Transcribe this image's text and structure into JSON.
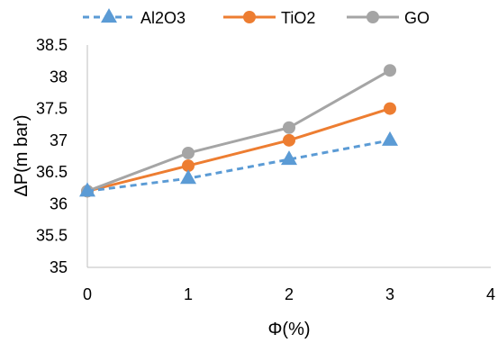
{
  "chart_data": {
    "type": "line",
    "xlabel": "Φ(%)",
    "ylabel": "ΔP(m bar)",
    "xlim": [
      0,
      4
    ],
    "ylim": [
      35,
      38.5
    ],
    "xticks": [
      0,
      1,
      2,
      3,
      4
    ],
    "yticks": [
      35,
      35.5,
      36,
      36.5,
      37,
      37.5,
      38,
      38.5
    ],
    "grid": false,
    "legend_position": "top",
    "series": [
      {
        "name": "Al2O3",
        "x": [
          0,
          1,
          2,
          3
        ],
        "y": [
          36.2,
          36.4,
          36.7,
          37.0
        ],
        "color": "#5b9bd5",
        "marker": "triangle",
        "line_style": "dashed"
      },
      {
        "name": "TiO2",
        "x": [
          0,
          1,
          2,
          3
        ],
        "y": [
          36.2,
          36.6,
          37.0,
          37.5
        ],
        "color": "#ed7d31",
        "marker": "circle",
        "line_style": "solid"
      },
      {
        "name": "GO",
        "x": [
          0,
          1,
          2,
          3
        ],
        "y": [
          36.2,
          36.8,
          37.2,
          38.1
        ],
        "color": "#a5a5a5",
        "marker": "circle",
        "line_style": "solid"
      }
    ]
  }
}
